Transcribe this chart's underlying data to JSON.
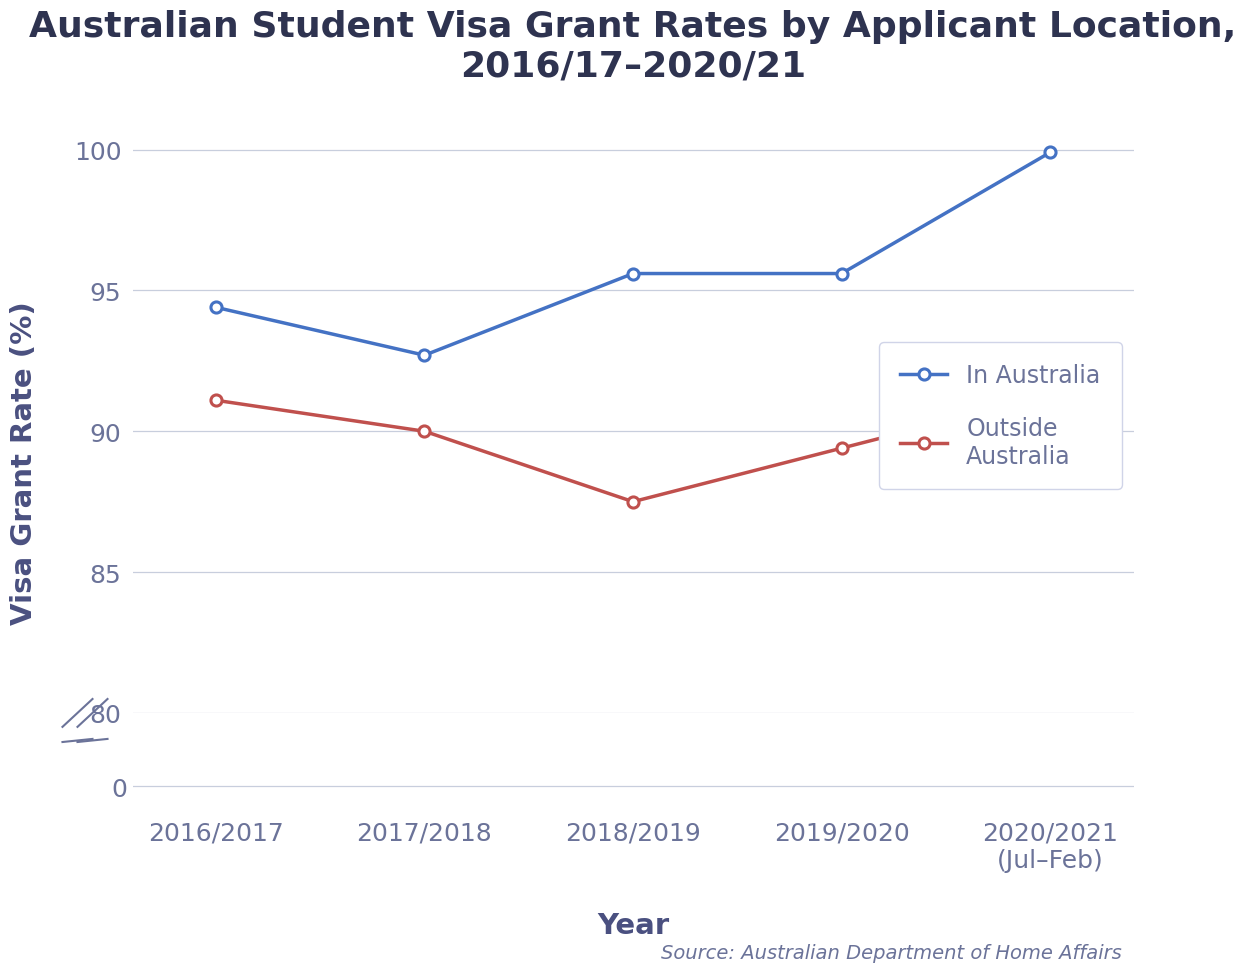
{
  "title": "Australian Student Visa Grant Rates by Applicant Location,\n2016/17–2020/21",
  "xlabel": "Year",
  "ylabel": "Visa Grant Rate (%)",
  "x_labels": [
    "2016/2017",
    "2017/2018",
    "2018/2019",
    "2019/2020",
    "2020/2021\n(Jul–Feb)"
  ],
  "in_australia": [
    94.4,
    92.7,
    95.6,
    95.6,
    99.9
  ],
  "outside_australia": [
    91.1,
    90.0,
    87.5,
    89.4,
    91.3
  ],
  "in_australia_color": "#4472C4",
  "outside_australia_color": "#C0504D",
  "background_color": "#FFFFFF",
  "grid_color": "#C8CEDD",
  "title_color": "#2E3350",
  "axis_label_color": "#4A5080",
  "tick_label_color": "#6B7399",
  "source_text": "Source: Australian Department of Home Affairs",
  "source_color": "#6B7399",
  "legend_in": "In Australia",
  "legend_out": "Outside\nAustralia",
  "title_fontsize": 26,
  "axis_label_fontsize": 21,
  "tick_fontsize": 18,
  "legend_fontsize": 17,
  "source_fontsize": 14
}
